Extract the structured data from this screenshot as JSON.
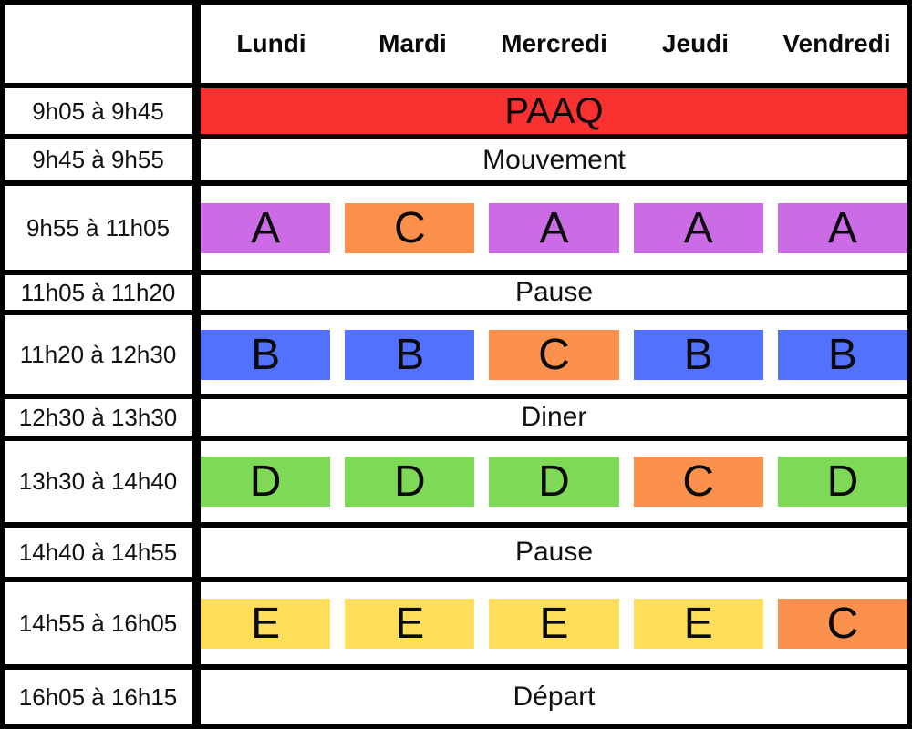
{
  "palette": {
    "border": "#000000",
    "cell_background": "#FFFFFF",
    "red": "#F93131",
    "purple": "#CB6CE6",
    "orange": "#FB914D",
    "blue": "#5271FF",
    "green": "#7ED957",
    "yellow": "#FFDE59"
  },
  "days": [
    "Lundi",
    "Mardi",
    "Mercredi",
    "Jeudi",
    "Vendredi"
  ],
  "rows": [
    {
      "time": "9h05 à 9h45",
      "kind": "banner",
      "label": "PAAQ",
      "color": "#F93131"
    },
    {
      "time": "9h45 à 9h55",
      "kind": "span",
      "label": "Mouvement"
    },
    {
      "time": "9h55 à 11h05",
      "kind": "classes",
      "cells": [
        {
          "label": "A",
          "color": "#CB6CE6"
        },
        {
          "label": "C",
          "color": "#FB914D"
        },
        {
          "label": "A",
          "color": "#CB6CE6"
        },
        {
          "label": "A",
          "color": "#CB6CE6"
        },
        {
          "label": "A",
          "color": "#CB6CE6"
        }
      ]
    },
    {
      "time": "11h05 à 11h20",
      "kind": "span",
      "label": "Pause"
    },
    {
      "time": "11h20 à 12h30",
      "kind": "classes",
      "cells": [
        {
          "label": "B",
          "color": "#5271FF"
        },
        {
          "label": "B",
          "color": "#5271FF"
        },
        {
          "label": "C",
          "color": "#FB914D"
        },
        {
          "label": "B",
          "color": "#5271FF"
        },
        {
          "label": "B",
          "color": "#5271FF"
        }
      ]
    },
    {
      "time": "12h30 à 13h30",
      "kind": "span",
      "label": "Diner"
    },
    {
      "time": "13h30 à 14h40",
      "kind": "classes",
      "cells": [
        {
          "label": "D",
          "color": "#7ED957"
        },
        {
          "label": "D",
          "color": "#7ED957"
        },
        {
          "label": "D",
          "color": "#7ED957"
        },
        {
          "label": "C",
          "color": "#FB914D"
        },
        {
          "label": "D",
          "color": "#7ED957"
        }
      ]
    },
    {
      "time": "14h40 à 14h55",
      "kind": "span",
      "label": "Pause"
    },
    {
      "time": "14h55 à 16h05",
      "kind": "classes",
      "cells": [
        {
          "label": "E",
          "color": "#FFDE59"
        },
        {
          "label": "E",
          "color": "#FFDE59"
        },
        {
          "label": "E",
          "color": "#FFDE59"
        },
        {
          "label": "E",
          "color": "#FFDE59"
        },
        {
          "label": "C",
          "color": "#FB914D"
        }
      ]
    },
    {
      "time": "16h05 à 16h15",
      "kind": "span",
      "label": "Départ"
    }
  ]
}
